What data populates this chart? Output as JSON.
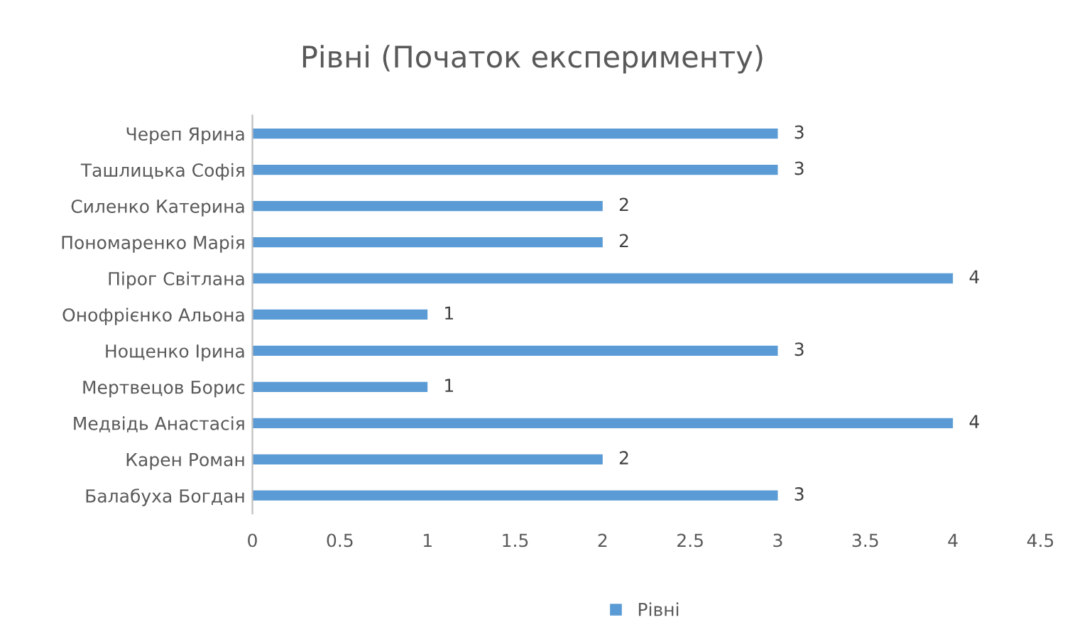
{
  "chart_data": {
    "type": "bar",
    "orientation": "horizontal",
    "title": "Рівні (Початок експерименту)",
    "categories": [
      "Череп Ярина",
      "Ташлицька Софія",
      "Силенко Катерина",
      "Пономаренко Марія",
      "Пірог Світлана",
      "Онофрієнко Альона",
      "Нощенко Ірина",
      "Мертвецов Борис",
      "Медвідь Анастасія",
      "Карен Роман",
      "Балабуха Богдан"
    ],
    "series": [
      {
        "name": "Рівні",
        "color": "#5b9bd5",
        "values": [
          3,
          3,
          2,
          2,
          4,
          1,
          3,
          1,
          4,
          2,
          3
        ]
      }
    ],
    "xlim": [
      0,
      4.5
    ],
    "xticks": [
      0,
      0.5,
      1,
      1.5,
      2,
      2.5,
      3,
      3.5,
      4,
      4.5
    ],
    "grid": false,
    "legend": "bottom",
    "data_labels": true
  }
}
